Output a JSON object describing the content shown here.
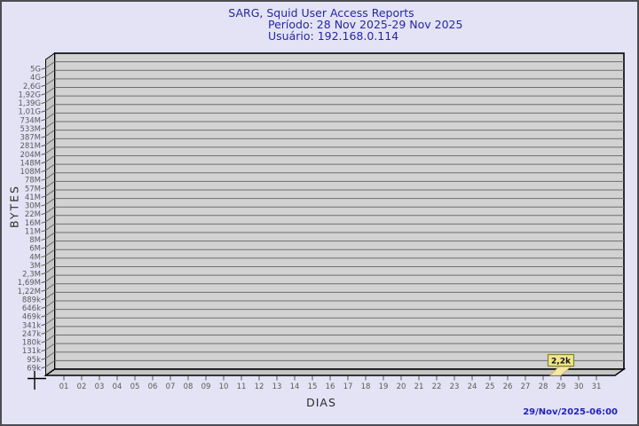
{
  "chart_data": {
    "type": "bar",
    "title": "SARG, Squid User Access Reports",
    "subtitle": [
      "Período: 28 Nov 2025-29 Nov 2025",
      "Usuário: 192.168.0.114"
    ],
    "xlabel": "DIAS",
    "ylabel": "BYTES",
    "y_scale": "logarithmic",
    "grid": true,
    "legend_position": "none",
    "y_tick_labels": [
      "5G",
      "4G",
      "2,6G",
      "1,92G",
      "1,39G",
      "1,01G",
      "734M",
      "533M",
      "387M",
      "281M",
      "204M",
      "148M",
      "108M",
      "78M",
      "57M",
      "41M",
      "30M",
      "22M",
      "16M",
      "11M",
      "8M",
      "6M",
      "4M",
      "3M",
      "2,3M",
      "1,69M",
      "1,22M",
      "889k",
      "646k",
      "469k",
      "341k",
      "247k",
      "180k",
      "131k",
      "95k",
      "69k"
    ],
    "x_categories": [
      "01",
      "02",
      "03",
      "04",
      "05",
      "06",
      "07",
      "08",
      "09",
      "10",
      "11",
      "12",
      "13",
      "14",
      "15",
      "16",
      "17",
      "18",
      "19",
      "20",
      "21",
      "22",
      "23",
      "24",
      "25",
      "26",
      "27",
      "28",
      "29",
      "30",
      "31"
    ],
    "points": [
      {
        "day": "29",
        "value_label": "2,2k",
        "approx_value_bytes": 2200
      }
    ]
  },
  "footer": {
    "timestamp": "29/Nov/2025-06:00"
  },
  "colors": {
    "background": "#e3e3f5",
    "plot_face": "#d2d2d2",
    "plot_side": "#c6c6c6",
    "grid_line": "#6e6e6e",
    "frame_line": "#000000",
    "title_text": "#2626a5",
    "tick_text": "#5a5a5a",
    "axis_label_text": "#2b2b2b",
    "timestamp_text": "#2323bd",
    "marker_box_fill": "#f0e68c",
    "marker_box_border": "#84842a",
    "marker_bar_fill": "#f6e7a6",
    "marker_bar_border": "#c9af52"
  }
}
